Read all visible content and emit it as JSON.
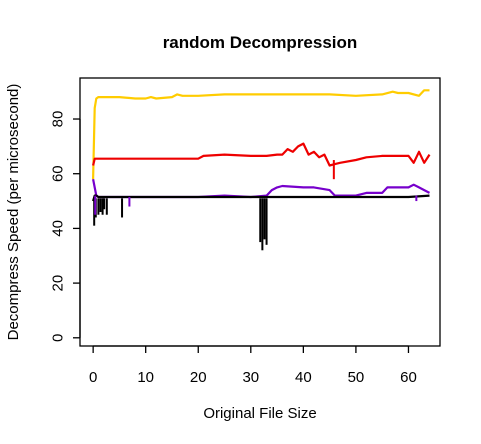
{
  "chart_data": {
    "type": "line",
    "title": "random Decompression",
    "xlabel": "Original File Size",
    "ylabel": "Decompress Speed (per microsecond)",
    "xlim": [
      -2.5,
      66
    ],
    "ylim": [
      -3,
      95
    ],
    "xticks": [
      "0",
      "10",
      "20",
      "30",
      "40",
      "50",
      "60"
    ],
    "yticks": [
      "0",
      "20",
      "40",
      "60",
      "80"
    ],
    "grid": false,
    "legend": "none",
    "series": [
      {
        "color": "#FFCC00",
        "x": [
          0,
          0.3,
          0.6,
          1,
          2,
          5,
          8,
          10,
          11,
          12,
          15,
          16,
          17,
          18,
          20,
          25,
          30,
          35,
          40,
          45,
          50,
          55,
          57,
          58,
          60,
          62,
          63,
          64
        ],
        "y": [
          58,
          84,
          87.5,
          88,
          88,
          88,
          87.5,
          87.5,
          88,
          87.5,
          88,
          89,
          88.5,
          88.5,
          88.5,
          89,
          89,
          89,
          89,
          89,
          88.5,
          89,
          90,
          89.5,
          89.5,
          88.5,
          90.5,
          90.5
        ]
      },
      {
        "color": "#EE0000",
        "x": [
          0,
          0.3,
          1,
          5,
          10,
          15,
          20,
          21,
          25,
          30,
          33,
          35,
          36,
          37,
          38,
          39,
          40,
          41,
          42,
          43,
          44,
          45,
          46,
          47,
          50,
          52,
          55,
          60,
          61,
          62,
          63,
          64
        ],
        "y": [
          63,
          65.5,
          65.5,
          65.5,
          65.5,
          65.5,
          65.5,
          66.5,
          67,
          66.5,
          66.5,
          67,
          67,
          69,
          68,
          70,
          71,
          67,
          68,
          66,
          67,
          63,
          63.5,
          64,
          65,
          66,
          66.5,
          66.5,
          64,
          68,
          64,
          67
        ]
      },
      {
        "color": "#7700CC",
        "x": [
          0,
          0.3,
          0.6,
          1,
          2,
          5,
          10,
          15,
          20,
          25,
          30,
          33,
          34,
          35,
          36,
          40,
          42,
          45,
          46,
          50,
          52,
          55,
          56,
          58,
          60,
          61,
          62,
          63,
          64
        ],
        "y": [
          58,
          55,
          52,
          51.5,
          51.5,
          51.5,
          51.5,
          51.5,
          51.5,
          52,
          51.5,
          52,
          54,
          55,
          55.5,
          55,
          55,
          54,
          52,
          52,
          53,
          53,
          55,
          55,
          55,
          56,
          55,
          54,
          53
        ]
      },
      {
        "color": "#000000",
        "x": [
          0,
          0.3,
          0.6,
          1,
          2,
          5,
          10,
          15,
          20,
          25,
          30,
          32,
          33,
          35,
          40,
          45,
          50,
          55,
          60,
          64
        ],
        "y": [
          50,
          52,
          52,
          51.5,
          51.5,
          51.5,
          51.5,
          51.5,
          51.5,
          51.5,
          51.5,
          51.5,
          51.5,
          51.5,
          51.5,
          51.5,
          51.5,
          51.5,
          51.5,
          52
        ]
      }
    ],
    "drops": [
      {
        "color": "#000000",
        "x": 0.2,
        "y0": 51,
        "y1": 41
      },
      {
        "color": "#000000",
        "x": 0.5,
        "y0": 51,
        "y1": 44
      },
      {
        "color": "#000000",
        "x": 1.0,
        "y0": 51,
        "y1": 45
      },
      {
        "color": "#000000",
        "x": 1.4,
        "y0": 51,
        "y1": 46
      },
      {
        "color": "#000000",
        "x": 1.8,
        "y0": 51,
        "y1": 45
      },
      {
        "color": "#000000",
        "x": 2.1,
        "y0": 51,
        "y1": 47
      },
      {
        "color": "#000000",
        "x": 2.6,
        "y0": 51,
        "y1": 45
      },
      {
        "color": "#000000",
        "x": 5.5,
        "y0": 51,
        "y1": 44
      },
      {
        "color": "#000000",
        "x": 31.8,
        "y0": 51,
        "y1": 35
      },
      {
        "color": "#000000",
        "x": 32.2,
        "y0": 51,
        "y1": 32
      },
      {
        "color": "#000000",
        "x": 32.6,
        "y0": 51,
        "y1": 36
      },
      {
        "color": "#000000",
        "x": 33.0,
        "y0": 51,
        "y1": 34
      },
      {
        "color": "#7700CC",
        "x": 0.4,
        "y0": 52,
        "y1": 45
      },
      {
        "color": "#7700CC",
        "x": 6.9,
        "y0": 51.5,
        "y1": 48
      },
      {
        "color": "#7700CC",
        "x": 61.5,
        "y0": 52,
        "y1": 50
      },
      {
        "color": "#EE0000",
        "x": 45.8,
        "y0": 65,
        "y1": 58
      }
    ]
  }
}
